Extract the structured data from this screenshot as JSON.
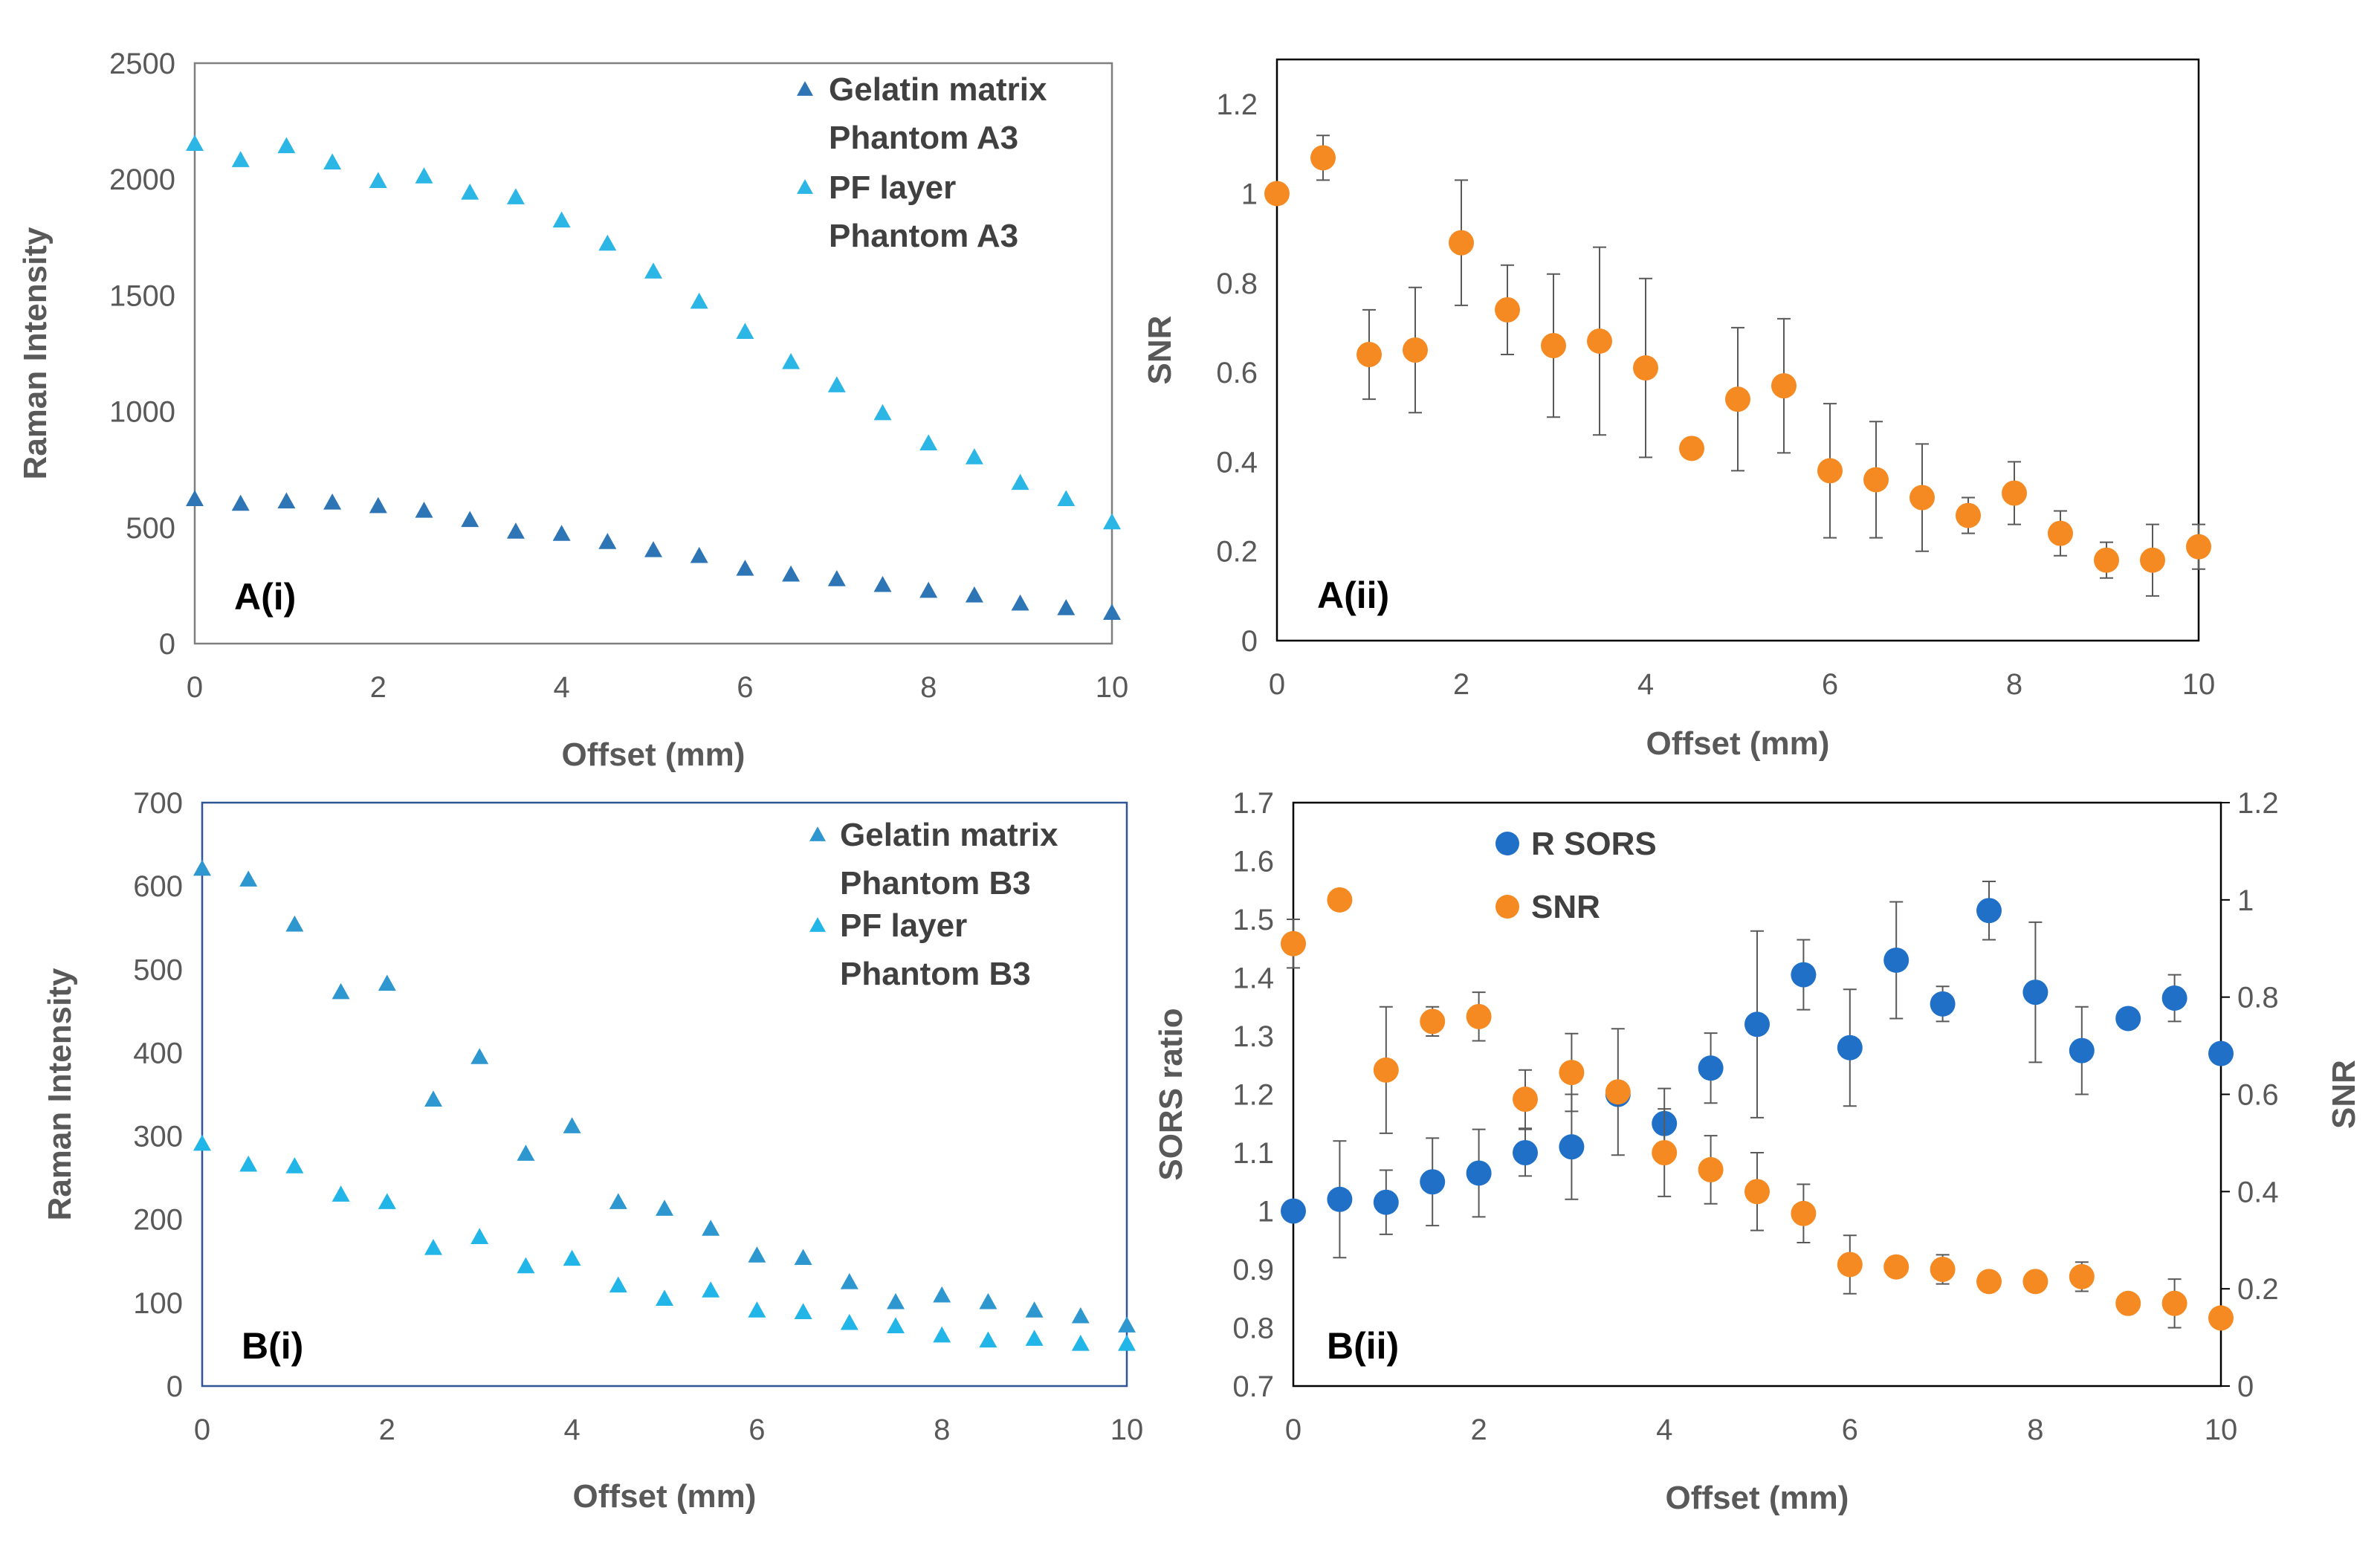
{
  "chart_data": [
    {
      "id": "A-i",
      "type": "scatter",
      "panel_label": "A(i)",
      "xlabel": "Offset (mm)",
      "ylabel": "Raman Intensity",
      "xlim": [
        0,
        10
      ],
      "ylim": [
        0,
        2500
      ],
      "xticks": [
        "0",
        "2",
        "4",
        "6",
        "8",
        "10"
      ],
      "yticks": [
        "0",
        "500",
        "1000",
        "1500",
        "2000",
        "2500"
      ],
      "grid": false,
      "legend_position": "top-right",
      "x": [
        0,
        0.5,
        1,
        1.5,
        2,
        2.5,
        3,
        3.5,
        4,
        4.5,
        5,
        5.5,
        6,
        6.5,
        7,
        7.5,
        8,
        8.5,
        9,
        9.5,
        10
      ],
      "series": [
        {
          "name": "Gelatin matrix Phantom A3",
          "legend_lines": [
            "Gelatin matrix",
            "Phantom A3"
          ],
          "marker": "triangle",
          "color": "#2E75B6",
          "values": [
            620,
            600,
            610,
            605,
            590,
            570,
            530,
            480,
            470,
            435,
            400,
            375,
            320,
            295,
            275,
            250,
            225,
            205,
            170,
            150,
            130
          ]
        },
        {
          "name": "PF layer Phantom A3",
          "legend_lines": [
            "PF layer",
            "Phantom A3"
          ],
          "marker": "triangle",
          "color": "#2BB6E6",
          "values": [
            2150,
            2080,
            2140,
            2070,
            1990,
            2010,
            1940,
            1920,
            1820,
            1720,
            1600,
            1470,
            1340,
            1210,
            1110,
            990,
            860,
            800,
            690,
            620,
            520
          ]
        }
      ]
    },
    {
      "id": "A-ii",
      "type": "scatter",
      "panel_label": "A(ii)",
      "xlabel": "Offset (mm)",
      "ylabel": "SNR",
      "xlim": [
        0,
        10
      ],
      "ylim": [
        0,
        1.3
      ],
      "xticks": [
        "0",
        "2",
        "4",
        "6",
        "8",
        "10"
      ],
      "yticks": [
        "0",
        "0.2",
        "0.4",
        "0.6",
        "0.8",
        "1",
        "1.2"
      ],
      "grid": false,
      "x": [
        0,
        0.5,
        1,
        1.5,
        2,
        2.5,
        3,
        3.5,
        4,
        4.5,
        5,
        5.5,
        6,
        6.5,
        7,
        7.5,
        8,
        8.5,
        9,
        9.5,
        10
      ],
      "series": [
        {
          "name": "SNR",
          "marker": "circle",
          "color": "#F58A22",
          "values": [
            1.0,
            1.08,
            0.64,
            0.65,
            0.89,
            0.74,
            0.66,
            0.67,
            0.61,
            0.43,
            0.54,
            0.57,
            0.38,
            0.36,
            0.32,
            0.28,
            0.33,
            0.24,
            0.18,
            0.18,
            0.21
          ],
          "errors": [
            0.0,
            0.05,
            0.1,
            0.14,
            0.14,
            0.1,
            0.16,
            0.21,
            0.2,
            0.0,
            0.16,
            0.15,
            0.15,
            0.13,
            0.12,
            0.04,
            0.07,
            0.05,
            0.04,
            0.08,
            0.05
          ]
        }
      ]
    },
    {
      "id": "B-i",
      "type": "scatter",
      "panel_label": "B(i)",
      "xlabel": "Offset (mm)",
      "ylabel": "Raman Intensity",
      "xlim": [
        0,
        10
      ],
      "ylim": [
        0,
        700
      ],
      "xticks": [
        "0",
        "2",
        "4",
        "6",
        "8",
        "10"
      ],
      "yticks": [
        "0",
        "100",
        "200",
        "300",
        "400",
        "500",
        "600",
        "700"
      ],
      "grid": false,
      "legend_position": "top-right",
      "x": [
        0,
        0.5,
        1,
        1.5,
        2,
        2.5,
        3,
        3.5,
        4,
        4.5,
        5,
        5.5,
        6,
        6.5,
        7,
        7.5,
        8,
        8.5,
        9,
        9.5,
        10
      ],
      "series": [
        {
          "name": "Gelatin matrix Phantom B3",
          "legend_lines": [
            "Gelatin matrix",
            "Phantom B3"
          ],
          "marker": "triangle",
          "color": "#2F97D0",
          "values": [
            620,
            607,
            553,
            472,
            482,
            343,
            394,
            278,
            311,
            220,
            212,
            188,
            156,
            153,
            124,
            100,
            108,
            100,
            90,
            83,
            72
          ]
        },
        {
          "name": "PF layer Phantom B3",
          "legend_lines": [
            "PF layer",
            "Phantom B3"
          ],
          "marker": "triangle",
          "color": "#22B5E8",
          "values": [
            290,
            265,
            263,
            229,
            220,
            165,
            178,
            143,
            152,
            120,
            104,
            114,
            90,
            88,
            75,
            71,
            60,
            54,
            56,
            50,
            50
          ]
        }
      ]
    },
    {
      "id": "B-ii",
      "type": "scatter",
      "panel_label": "B(ii)",
      "xlabel": "Offset (mm)",
      "ylabel": "SORS ratio",
      "y2label": "SNR",
      "xlim": [
        0,
        10
      ],
      "ylim": [
        0.7,
        1.7
      ],
      "y2lim": [
        0,
        1.2
      ],
      "xticks": [
        "0",
        "2",
        "4",
        "6",
        "8",
        "10"
      ],
      "yticks": [
        "0.7",
        "0.8",
        "0.9",
        "1",
        "1.1",
        "1.2",
        "1.3",
        "1.4",
        "1.5",
        "1.6",
        "1.7"
      ],
      "y2ticks": [
        "0",
        "0.2",
        "0.4",
        "0.6",
        "0.8",
        "1",
        "1.2"
      ],
      "grid": false,
      "legend_position": "top-left",
      "x": [
        0,
        0.5,
        1,
        1.5,
        2,
        2.5,
        3,
        3.5,
        4,
        4.5,
        5,
        5.5,
        6,
        6.5,
        7,
        7.5,
        8,
        8.5,
        9,
        9.5,
        10
      ],
      "series": [
        {
          "name": "R SORS",
          "axis": "left",
          "marker": "circle",
          "color": "#2170C8",
          "values": [
            1.0,
            1.02,
            1.015,
            1.05,
            1.065,
            1.1,
            1.11,
            1.2,
            1.15,
            1.245,
            1.32,
            1.405,
            1.28,
            1.43,
            1.355,
            1.515,
            1.375,
            1.275,
            1.33,
            1.365,
            1.27
          ],
          "errors": [
            0.0,
            0.1,
            0.055,
            0.075,
            0.075,
            0.04,
            0.09,
            0.0,
            0.06,
            0.06,
            0.16,
            0.06,
            0.1,
            0.1,
            0.03,
            0.05,
            0.12,
            0.075,
            0.0,
            0.04,
            0.0
          ]
        },
        {
          "name": "SNR",
          "axis": "right",
          "marker": "circle",
          "color": "#F58A22",
          "values": [
            0.91,
            1.0,
            0.65,
            0.75,
            0.76,
            0.59,
            0.645,
            0.605,
            0.48,
            0.445,
            0.4,
            0.355,
            0.25,
            0.245,
            0.24,
            0.215,
            0.215,
            0.225,
            0.17,
            0.17,
            0.14
          ],
          "errors": [
            0.05,
            0.0,
            0.13,
            0.03,
            0.05,
            0.06,
            0.08,
            0.13,
            0.09,
            0.07,
            0.08,
            0.06,
            0.06,
            0.02,
            0.03,
            0.0,
            0.02,
            0.03,
            0.0,
            0.05,
            0.0
          ]
        }
      ]
    }
  ]
}
